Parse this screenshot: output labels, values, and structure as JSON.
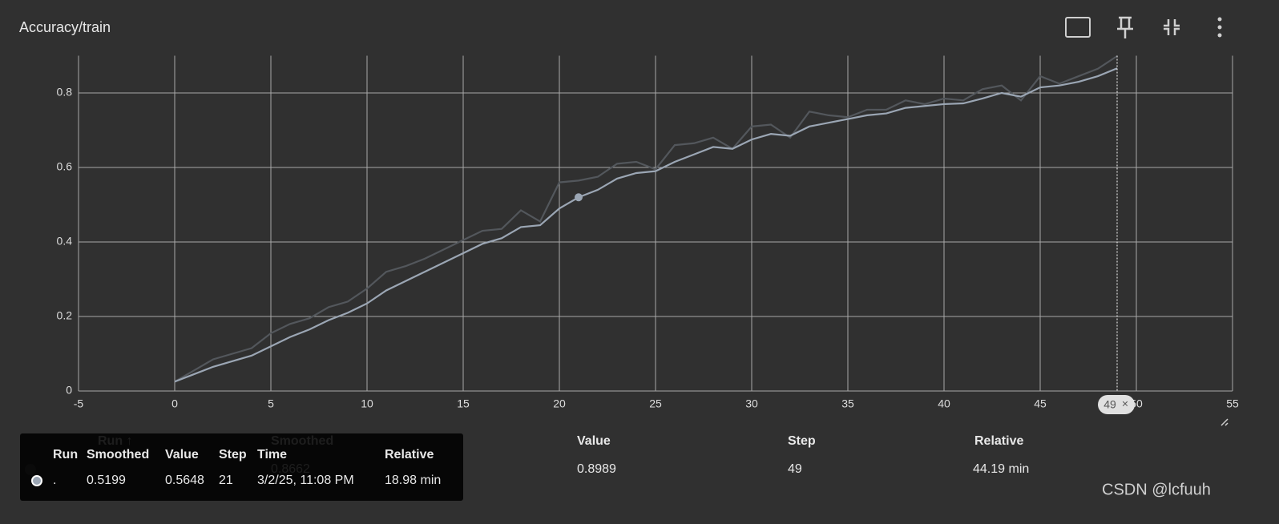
{
  "header": {
    "title": "Accuracy/train"
  },
  "chart_data": {
    "type": "line",
    "x": [
      0,
      1,
      2,
      3,
      4,
      5,
      6,
      7,
      8,
      9,
      10,
      11,
      12,
      13,
      14,
      15,
      16,
      17,
      18,
      19,
      20,
      21,
      22,
      23,
      24,
      25,
      26,
      27,
      28,
      29,
      30,
      31,
      32,
      33,
      34,
      35,
      36,
      37,
      38,
      39,
      40,
      41,
      42,
      43,
      44,
      45,
      46,
      47,
      48,
      49
    ],
    "series": [
      {
        "name": "Value",
        "color": "#53575c",
        "values": [
          0.025,
          0.055,
          0.085,
          0.1,
          0.115,
          0.155,
          0.18,
          0.195,
          0.225,
          0.24,
          0.275,
          0.32,
          0.335,
          0.355,
          0.38,
          0.405,
          0.43,
          0.435,
          0.485,
          0.455,
          0.56,
          0.5648,
          0.575,
          0.61,
          0.615,
          0.595,
          0.66,
          0.665,
          0.68,
          0.65,
          0.71,
          0.715,
          0.68,
          0.75,
          0.74,
          0.735,
          0.755,
          0.755,
          0.78,
          0.77,
          0.785,
          0.78,
          0.81,
          0.82,
          0.78,
          0.845,
          0.825,
          0.845,
          0.865,
          0.8989
        ]
      },
      {
        "name": "Smoothed",
        "color": "#9ba6b4",
        "values": [
          0.025,
          0.045,
          0.065,
          0.08,
          0.095,
          0.12,
          0.145,
          0.165,
          0.19,
          0.21,
          0.235,
          0.27,
          0.295,
          0.32,
          0.345,
          0.37,
          0.395,
          0.41,
          0.44,
          0.445,
          0.49,
          0.5199,
          0.54,
          0.57,
          0.585,
          0.59,
          0.615,
          0.635,
          0.655,
          0.65,
          0.675,
          0.69,
          0.685,
          0.71,
          0.72,
          0.73,
          0.74,
          0.745,
          0.76,
          0.765,
          0.77,
          0.772,
          0.785,
          0.8,
          0.79,
          0.815,
          0.82,
          0.83,
          0.845,
          0.8662
        ]
      }
    ],
    "xlim": [
      -5,
      55
    ],
    "xticks": [
      -5,
      0,
      5,
      10,
      15,
      20,
      25,
      30,
      35,
      40,
      45,
      50,
      55
    ],
    "ylim": [
      0,
      0.9
    ],
    "yticks": [
      0,
      0.2,
      0.4,
      0.6,
      0.8
    ],
    "grid": true
  },
  "tooltip": {
    "columns": [
      "Run",
      "Smoothed",
      "Value",
      "Step",
      "Time",
      "Relative"
    ],
    "run": ".",
    "time": "3/2/25, 11:08 PM",
    "relative": "18.98 min"
  },
  "table": {
    "columns": [
      "Run ↑",
      "Smoothed",
      "Value",
      "Step",
      "Relative"
    ],
    "relative": "44.19 min"
  },
  "watermark": "CSDN @lcfuuh"
}
